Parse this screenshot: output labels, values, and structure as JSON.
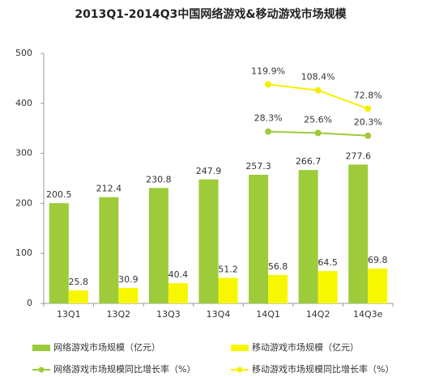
{
  "chart_data": {
    "type": "bar",
    "title": "2013Q1-2014Q3中国网络游戏&移动游戏市场规模",
    "categories": [
      "13Q1",
      "13Q2",
      "13Q3",
      "13Q4",
      "14Q1",
      "14Q2",
      "14Q3e"
    ],
    "ylim": [
      0,
      500
    ],
    "yticks": [
      0,
      100,
      200,
      300,
      400,
      500
    ],
    "y2lim": [
      -305,
      180
    ],
    "series": [
      {
        "name": "网络游戏市场规模（亿元）",
        "type": "bar",
        "color": "#9dcb3a",
        "values": [
          200.5,
          212.4,
          230.8,
          247.9,
          257.3,
          266.7,
          277.6
        ]
      },
      {
        "name": "移动游戏市场规模（亿元）",
        "type": "bar",
        "color": "#f7f700",
        "values": [
          25.8,
          30.9,
          40.4,
          51.2,
          56.8,
          64.5,
          69.8
        ]
      },
      {
        "name": "网络游戏市场规模同比增长率（%）",
        "type": "line",
        "axis": "y2",
        "color": "#9dcb3a",
        "values": [
          null,
          null,
          null,
          null,
          28.3,
          25.6,
          20.3
        ],
        "value_labels": [
          null,
          null,
          null,
          null,
          "28.3%",
          "25.6%",
          "20.3%"
        ]
      },
      {
        "name": "移动游戏市场规模同比增长率（%）",
        "type": "line",
        "axis": "y2",
        "color": "#f5f000",
        "values": [
          null,
          null,
          null,
          null,
          119.9,
          108.4,
          72.8
        ],
        "value_labels": [
          null,
          null,
          null,
          null,
          "119.9%",
          "108.4%",
          "72.8%"
        ]
      }
    ]
  }
}
